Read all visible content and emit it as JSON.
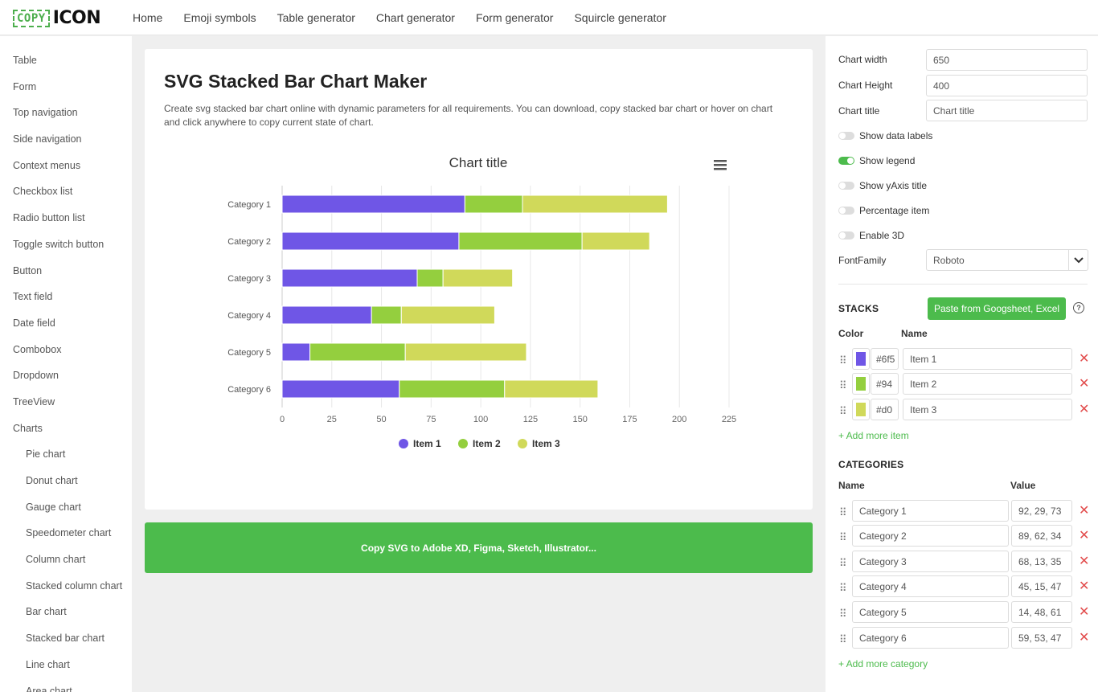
{
  "header": {
    "logo_copy": "COPY",
    "logo_icon": "ICON",
    "nav": [
      "Home",
      "Emoji symbols",
      "Table generator",
      "Chart generator",
      "Form generator",
      "Squircle generator"
    ]
  },
  "sidebar": {
    "items": [
      {
        "label": "Table",
        "sub": false
      },
      {
        "label": "Form",
        "sub": false
      },
      {
        "label": "Top navigation",
        "sub": false
      },
      {
        "label": "Side navigation",
        "sub": false
      },
      {
        "label": "Context menus",
        "sub": false
      },
      {
        "label": "Checkbox list",
        "sub": false
      },
      {
        "label": "Radio button list",
        "sub": false
      },
      {
        "label": "Toggle switch button",
        "sub": false
      },
      {
        "label": "Button",
        "sub": false
      },
      {
        "label": "Text field",
        "sub": false
      },
      {
        "label": "Date field",
        "sub": false
      },
      {
        "label": "Combobox",
        "sub": false
      },
      {
        "label": "Dropdown",
        "sub": false
      },
      {
        "label": "TreeView",
        "sub": false
      },
      {
        "label": "Charts",
        "sub": false
      },
      {
        "label": "Pie chart",
        "sub": true
      },
      {
        "label": "Donut chart",
        "sub": true
      },
      {
        "label": "Gauge chart",
        "sub": true
      },
      {
        "label": "Speedometer chart",
        "sub": true
      },
      {
        "label": "Column chart",
        "sub": true
      },
      {
        "label": "Stacked column chart",
        "sub": true
      },
      {
        "label": "Bar chart",
        "sub": true
      },
      {
        "label": "Stacked bar chart",
        "sub": true
      },
      {
        "label": "Line chart",
        "sub": true
      },
      {
        "label": "Area chart",
        "sub": true
      }
    ]
  },
  "main": {
    "title": "SVG Stacked Bar Chart Maker",
    "description": "Create svg stacked bar chart online with dynamic parameters for all requirements. You can download, copy stacked bar chart or hover on chart and click anywhere to copy current state of chart.",
    "copy_button": "Copy SVG to Adobe XD, Figma, Sketch, Illustrator..."
  },
  "chart_data": {
    "type": "bar",
    "orientation": "horizontal",
    "stacked": true,
    "title": "Chart title",
    "categories": [
      "Category 1",
      "Category 2",
      "Category 3",
      "Category 4",
      "Category 5",
      "Category 6"
    ],
    "series": [
      {
        "name": "Item 1",
        "color": "#6f56e6",
        "values": [
          92,
          89,
          68,
          45,
          14,
          59
        ]
      },
      {
        "name": "Item 2",
        "color": "#94cf3e",
        "values": [
          29,
          62,
          13,
          15,
          48,
          53
        ]
      },
      {
        "name": "Item 3",
        "color": "#d0d95a",
        "values": [
          73,
          34,
          35,
          47,
          61,
          47
        ]
      }
    ],
    "xticks": [
      "0",
      "25",
      "50",
      "75",
      "100",
      "125",
      "150",
      "175",
      "200",
      "225"
    ],
    "xlim": [
      0,
      225
    ],
    "grid": true,
    "legend_position": "bottom"
  },
  "settings": {
    "chart_width_label": "Chart width",
    "chart_width_value": "650",
    "chart_height_label": "Chart Height",
    "chart_height_value": "400",
    "chart_title_label": "Chart title",
    "chart_title_value": "Chart title",
    "toggles": [
      {
        "label": "Show data labels",
        "on": false
      },
      {
        "label": "Show legend",
        "on": true
      },
      {
        "label": "Show yAxis title",
        "on": false
      },
      {
        "label": "Percentage item",
        "on": false
      },
      {
        "label": "Enable 3D",
        "on": false
      }
    ],
    "font_family_label": "FontFamily",
    "font_family_value": "Roboto"
  },
  "stacks": {
    "title": "STACKS",
    "paste_button": "Paste from Googsheet, Excel",
    "help": "?",
    "color_header": "Color",
    "name_header": "Name",
    "items": [
      {
        "color": "#6f56e6",
        "hex_text": "#6f5",
        "name": "Item 1"
      },
      {
        "color": "#94cf3e",
        "hex_text": "#94",
        "name": "Item 2"
      },
      {
        "color": "#d0d95a",
        "hex_text": "#d0",
        "name": "Item 3"
      }
    ],
    "add_link": "+ Add more item"
  },
  "categories_panel": {
    "title": "CATEGORIES",
    "name_header": "Name",
    "value_header": "Value",
    "items": [
      {
        "name": "Category 1",
        "value": "92, 29, 73"
      },
      {
        "name": "Category 2",
        "value": "89, 62, 34"
      },
      {
        "name": "Category 3",
        "value": "68, 13, 35"
      },
      {
        "name": "Category 4",
        "value": "45, 15, 47"
      },
      {
        "name": "Category 5",
        "value": "14, 48, 61"
      },
      {
        "name": "Category 6",
        "value": "59, 53, 47"
      }
    ],
    "add_link": "+ Add more category"
  }
}
